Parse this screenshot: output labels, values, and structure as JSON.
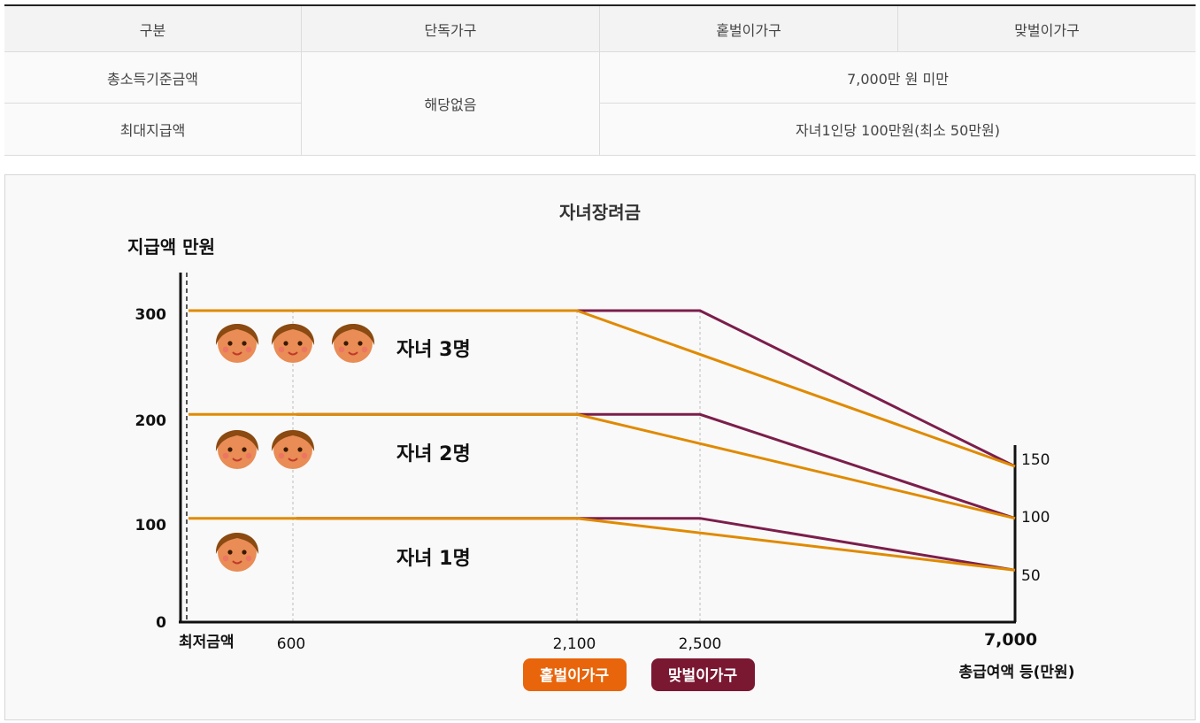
{
  "table": {
    "headers": [
      "구분",
      "단독가구",
      "홑벌이가구",
      "맞벌이가구"
    ],
    "row1_label": "총소득기준금액",
    "row2_label": "최대지급액",
    "single_value": "해당없음",
    "row1_value": "7,000만 원 미만",
    "row2_value": "자녀1인당 100만원(최소 50만원)"
  },
  "colors": {
    "single_earner": "#E08A00",
    "dual_earner": "#7B1E4B",
    "legend_single_bg": "#E8650B",
    "legend_dual_bg": "#7A1832"
  },
  "chart_data": {
    "type": "line",
    "title": "자녀장려금",
    "ylabel": "지급액 만원",
    "xlabel": "총급여액 등(만원)",
    "x_tick_labels": [
      "최저금액",
      "600",
      "2,100",
      "2,500",
      "7,000"
    ],
    "y_tick_labels": [
      "0",
      "100",
      "200",
      "300"
    ],
    "right_tick_labels": [
      "150",
      "100",
      "50"
    ],
    "group_labels": [
      "자녀 3명",
      "자녀 2명",
      "자녀 1명"
    ],
    "legend": [
      "홑벌이가구",
      "맞벌이가구"
    ],
    "ylim": [
      0,
      300
    ],
    "series": [
      {
        "name": "홑벌이가구",
        "children": 3,
        "x": [
          "최저금액",
          "2,100",
          "7,000"
        ],
        "values": [
          300,
          300,
          150
        ]
      },
      {
        "name": "홑벌이가구",
        "children": 2,
        "x": [
          "최저금액",
          "2,100",
          "7,000"
        ],
        "values": [
          200,
          200,
          100
        ]
      },
      {
        "name": "홑벌이가구",
        "children": 1,
        "x": [
          "최저금액",
          "2,100",
          "7,000"
        ],
        "values": [
          100,
          100,
          50
        ]
      },
      {
        "name": "맞벌이가구",
        "children": 3,
        "x": [
          "600",
          "2,500",
          "7,000"
        ],
        "values": [
          300,
          300,
          150
        ]
      },
      {
        "name": "맞벌이가구",
        "children": 2,
        "x": [
          "600",
          "2,500",
          "7,000"
        ],
        "values": [
          200,
          200,
          100
        ]
      },
      {
        "name": "맞벌이가구",
        "children": 1,
        "x": [
          "600",
          "2,500",
          "7,000"
        ],
        "values": [
          100,
          100,
          50
        ]
      }
    ]
  }
}
